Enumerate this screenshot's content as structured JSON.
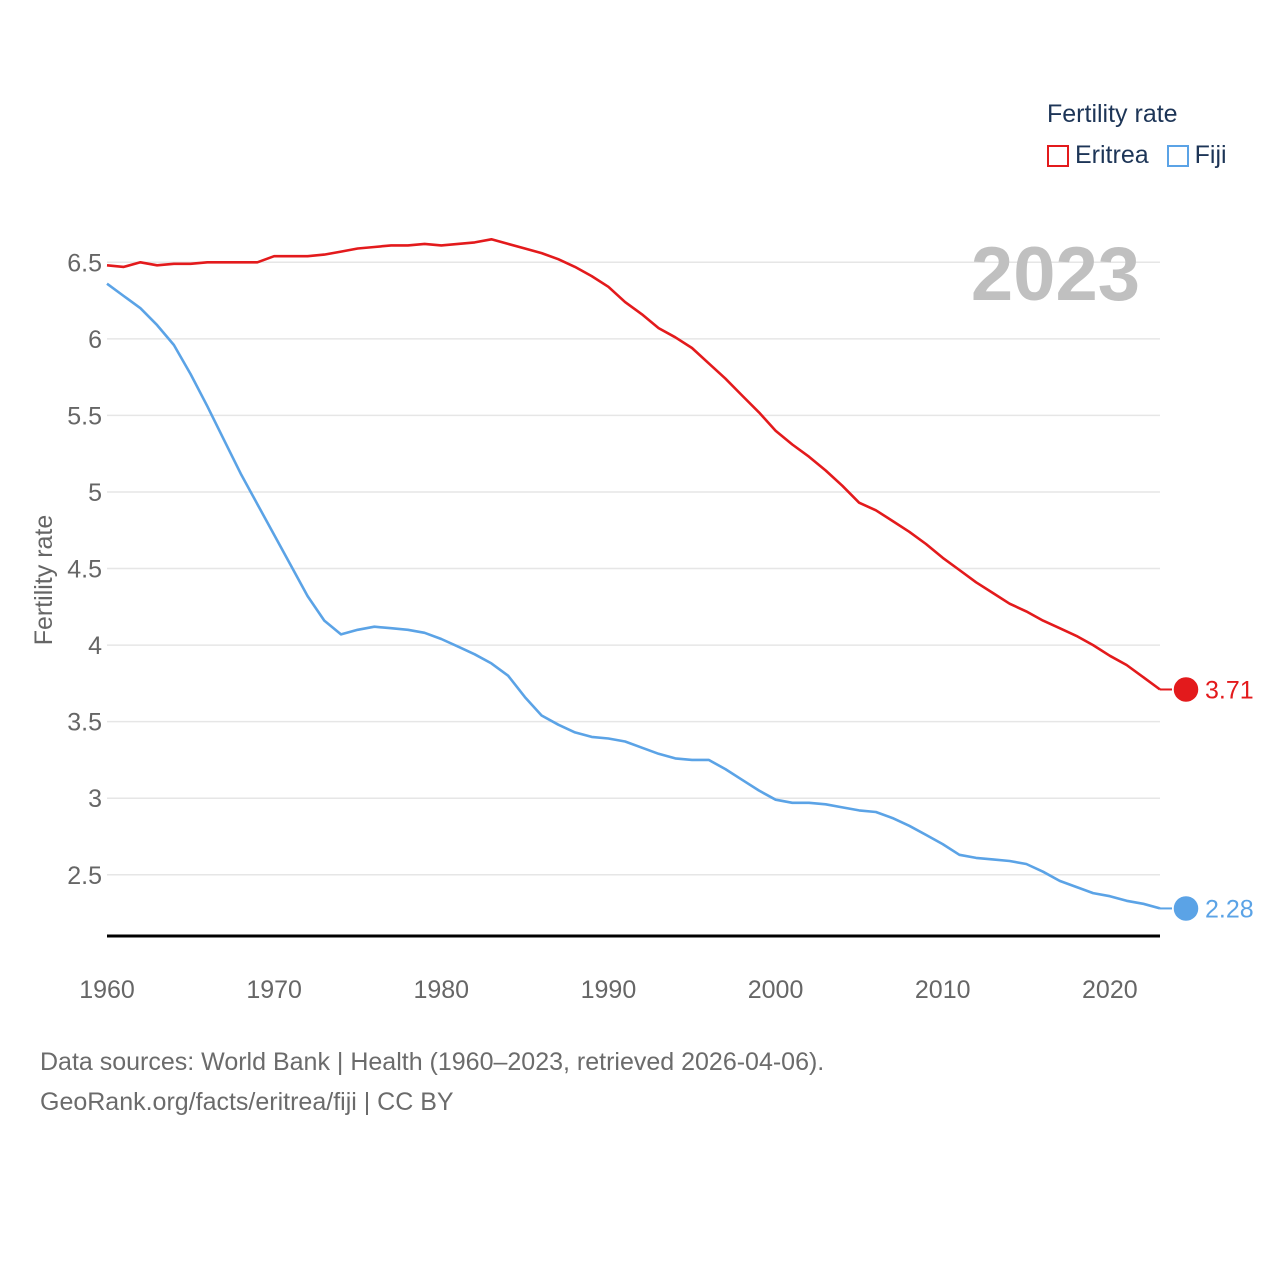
{
  "chart_data": {
    "type": "line",
    "title": "Fertility rate",
    "ylabel": "Fertility rate",
    "xlabel": "",
    "year_label": "2023",
    "xlim": [
      1960,
      2023
    ],
    "ylim": [
      2.1,
      6.75
    ],
    "yticks": [
      2.5,
      3,
      3.5,
      4,
      4.5,
      5,
      5.5,
      6,
      6.5
    ],
    "ytick_labels": [
      "2.5",
      "3",
      "3.5",
      "4",
      "4.5",
      "5",
      "5.5",
      "6",
      "6.5"
    ],
    "xticks": [
      1960,
      1970,
      1980,
      1990,
      2000,
      2010,
      2020
    ],
    "xtick_labels": [
      "1960",
      "1970",
      "1980",
      "1990",
      "2000",
      "2010",
      "2020"
    ],
    "x": [
      1960,
      1961,
      1962,
      1963,
      1964,
      1965,
      1966,
      1967,
      1968,
      1969,
      1970,
      1971,
      1972,
      1973,
      1974,
      1975,
      1976,
      1977,
      1978,
      1979,
      1980,
      1981,
      1982,
      1983,
      1984,
      1985,
      1986,
      1987,
      1988,
      1989,
      1990,
      1991,
      1992,
      1993,
      1994,
      1995,
      1996,
      1997,
      1998,
      1999,
      2000,
      2001,
      2002,
      2003,
      2004,
      2005,
      2006,
      2007,
      2008,
      2009,
      2010,
      2011,
      2012,
      2013,
      2014,
      2015,
      2016,
      2017,
      2018,
      2019,
      2020,
      2021,
      2022,
      2023
    ],
    "series": [
      {
        "name": "Eritrea",
        "color": "#e31a1c",
        "end_label": "3.71",
        "values": [
          6.48,
          6.47,
          6.5,
          6.48,
          6.49,
          6.49,
          6.5,
          6.5,
          6.5,
          6.5,
          6.54,
          6.54,
          6.54,
          6.55,
          6.57,
          6.59,
          6.6,
          6.61,
          6.61,
          6.62,
          6.61,
          6.62,
          6.63,
          6.65,
          6.62,
          6.59,
          6.56,
          6.52,
          6.47,
          6.41,
          6.34,
          6.24,
          6.16,
          6.07,
          6.01,
          5.94,
          5.84,
          5.74,
          5.63,
          5.52,
          5.4,
          5.31,
          5.23,
          5.14,
          5.04,
          4.93,
          4.88,
          4.81,
          4.74,
          4.66,
          4.57,
          4.49,
          4.41,
          4.34,
          4.27,
          4.22,
          4.16,
          4.11,
          4.06,
          4.0,
          3.93,
          3.87,
          3.79,
          3.71
        ]
      },
      {
        "name": "Fiji",
        "color": "#5ba3e6",
        "end_label": "2.28",
        "values": [
          6.36,
          6.28,
          6.2,
          6.09,
          5.96,
          5.77,
          5.56,
          5.34,
          5.12,
          4.92,
          4.72,
          4.52,
          4.32,
          4.16,
          4.07,
          4.1,
          4.12,
          4.11,
          4.1,
          4.08,
          4.04,
          3.99,
          3.94,
          3.88,
          3.8,
          3.66,
          3.54,
          3.48,
          3.43,
          3.4,
          3.39,
          3.37,
          3.33,
          3.29,
          3.26,
          3.25,
          3.25,
          3.19,
          3.12,
          3.05,
          2.99,
          2.97,
          2.97,
          2.96,
          2.94,
          2.92,
          2.91,
          2.87,
          2.82,
          2.76,
          2.7,
          2.63,
          2.61,
          2.6,
          2.59,
          2.57,
          2.52,
          2.46,
          2.42,
          2.38,
          2.36,
          2.33,
          2.31,
          2.28
        ]
      }
    ]
  },
  "footer": {
    "line1": "Data sources: World Bank | Health (1960–2023, retrieved 2026-04-06).",
    "line2": "GeoRank.org/facts/eritrea/fiji | CC BY"
  },
  "colors": {
    "grid": "#e6e6e6",
    "tick_text": "#666666",
    "axis": "#000000",
    "year_watermark": "#c0c0c0"
  }
}
